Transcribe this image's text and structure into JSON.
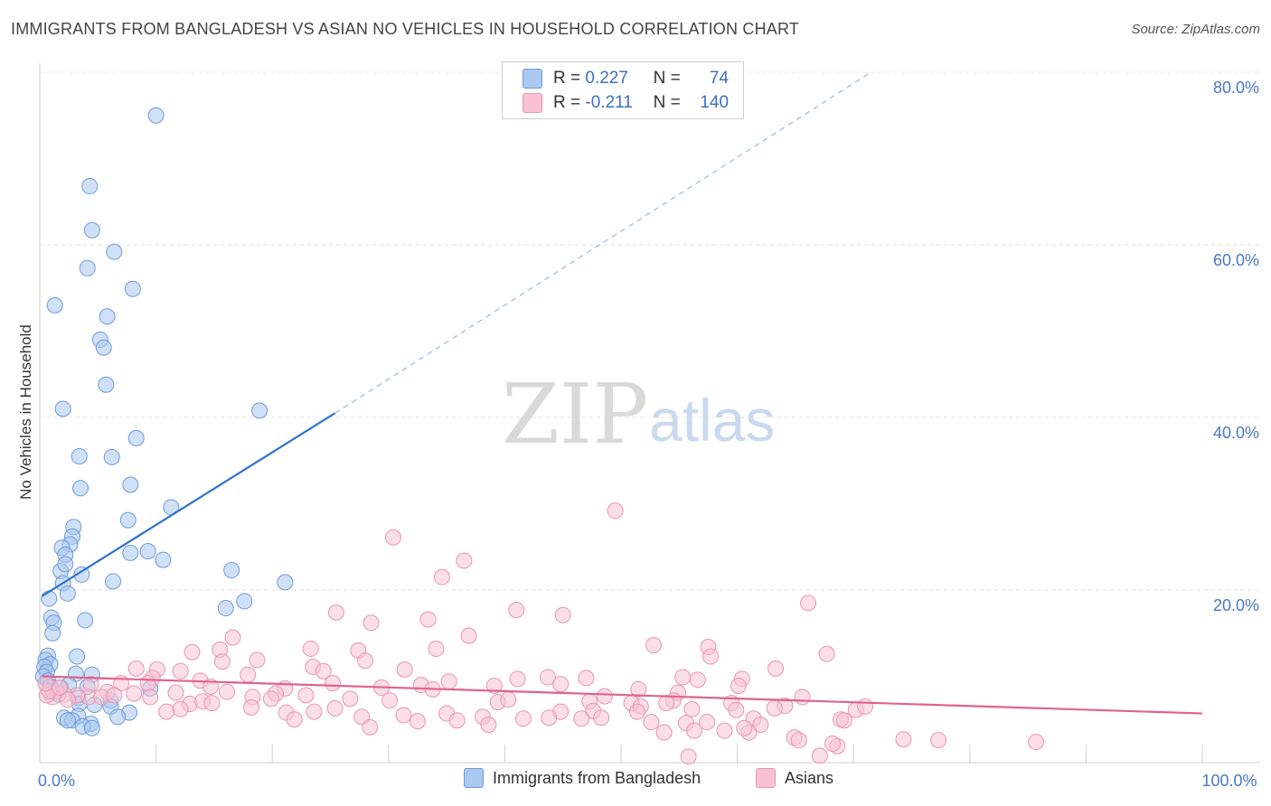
{
  "title": "IMMIGRANTS FROM BANGLADESH VS ASIAN NO VEHICLES IN HOUSEHOLD CORRELATION CHART",
  "source": "Source: ZipAtlas.com",
  "watermark": {
    "zip": "ZIP",
    "atlas": "atlas"
  },
  "legend": {
    "rows": [
      {
        "r_label": "R =",
        "r_value": "0.227",
        "n_label": "N =",
        "n_value": "74",
        "color": "#aac8f0",
        "border": "#6f9ad8"
      },
      {
        "r_label": "R =",
        "r_value": "-0.211",
        "n_label": "N =",
        "n_value": "140",
        "color": "#f8c2d4",
        "border": "#e896b1"
      }
    ]
  },
  "bottom_legend": [
    {
      "label": "Immigrants from Bangladesh",
      "color": "#aac8f0",
      "border": "#6f9ad8"
    },
    {
      "label": "Asians",
      "color": "#f8c2d4",
      "border": "#e896b1"
    }
  ],
  "chart_data": {
    "type": "scatter",
    "ylabel": "No Vehicles in Household",
    "xlabel": "",
    "xlim": [
      0,
      100
    ],
    "ylim": [
      0,
      85
    ],
    "x_ticks": [
      {
        "v": 0,
        "label": "0.0%"
      },
      {
        "v": 100,
        "label": "100.0%"
      }
    ],
    "y_ticks": [
      {
        "v": 20,
        "label": "20.0%"
      },
      {
        "v": 40,
        "label": "40.0%"
      },
      {
        "v": 60,
        "label": "60.0%"
      },
      {
        "v": 80,
        "label": "80.0%"
      }
    ],
    "grid": true,
    "series": [
      {
        "name": "Immigrants from Bangladesh",
        "color": "#aac8f0",
        "stroke": "#6f9ad8",
        "trend": {
          "x0": 0.2,
          "y0": 19.3,
          "x1": 25.4,
          "y1": 40.5,
          "dash_x1": 71.5,
          "dash_y1": 80.0,
          "color": "#2f72cf"
        },
        "points": [
          [
            10.0,
            75.0
          ],
          [
            4.3,
            66.8
          ],
          [
            4.5,
            61.7
          ],
          [
            6.4,
            59.2
          ],
          [
            4.1,
            57.3
          ],
          [
            8.0,
            54.9
          ],
          [
            1.3,
            53.0
          ],
          [
            5.8,
            51.7
          ],
          [
            5.2,
            49.0
          ],
          [
            5.5,
            48.1
          ],
          [
            5.7,
            43.8
          ],
          [
            2.0,
            41.0
          ],
          [
            18.9,
            40.8
          ],
          [
            8.3,
            37.6
          ],
          [
            3.4,
            35.5
          ],
          [
            6.2,
            35.4
          ],
          [
            3.5,
            31.8
          ],
          [
            7.8,
            32.2
          ],
          [
            11.3,
            29.6
          ],
          [
            2.9,
            27.3
          ],
          [
            7.6,
            28.1
          ],
          [
            2.8,
            26.2
          ],
          [
            2.6,
            25.3
          ],
          [
            1.9,
            24.9
          ],
          [
            2.2,
            24.1
          ],
          [
            9.3,
            24.5
          ],
          [
            7.8,
            24.3
          ],
          [
            10.6,
            23.5
          ],
          [
            1.8,
            22.2
          ],
          [
            2.2,
            23.0
          ],
          [
            16.5,
            22.3
          ],
          [
            3.6,
            21.8
          ],
          [
            2.0,
            20.8
          ],
          [
            6.3,
            21.0
          ],
          [
            21.1,
            20.9
          ],
          [
            2.4,
            19.6
          ],
          [
            0.8,
            19.0
          ],
          [
            17.6,
            18.7
          ],
          [
            16.0,
            17.9
          ],
          [
            1.0,
            16.8
          ],
          [
            1.2,
            16.2
          ],
          [
            3.9,
            16.5
          ],
          [
            1.1,
            15.0
          ],
          [
            0.7,
            12.4
          ],
          [
            3.2,
            12.3
          ],
          [
            0.5,
            11.9
          ],
          [
            0.9,
            11.4
          ],
          [
            0.4,
            11.1
          ],
          [
            0.6,
            10.5
          ],
          [
            0.3,
            10.0
          ],
          [
            0.7,
            9.5
          ],
          [
            3.1,
            10.3
          ],
          [
            4.5,
            10.2
          ],
          [
            0.9,
            8.8
          ],
          [
            1.8,
            8.7
          ],
          [
            2.5,
            9.0
          ],
          [
            4.1,
            8.8
          ],
          [
            1.2,
            8.2
          ],
          [
            9.5,
            8.6
          ],
          [
            3.3,
            7.5
          ],
          [
            1.6,
            7.9
          ],
          [
            6.1,
            7.2
          ],
          [
            3.4,
            6.8
          ],
          [
            4.7,
            6.7
          ],
          [
            6.1,
            6.5
          ],
          [
            2.1,
            5.2
          ],
          [
            3.3,
            5.4
          ],
          [
            2.8,
            4.9
          ],
          [
            4.4,
            4.5
          ],
          [
            3.7,
            4.2
          ],
          [
            7.7,
            5.8
          ],
          [
            4.5,
            4.0
          ],
          [
            2.4,
            4.9
          ],
          [
            6.7,
            5.3
          ]
        ]
      },
      {
        "name": "Asians",
        "color": "#f8c2d4",
        "stroke": "#e896b1",
        "trend": {
          "x0": 0.2,
          "y0": 10.0,
          "x1": 100.0,
          "y1": 5.7,
          "color": "#e0628f"
        },
        "points": [
          [
            49.5,
            29.2
          ],
          [
            30.4,
            26.1
          ],
          [
            36.5,
            23.4
          ],
          [
            34.6,
            21.5
          ],
          [
            66.1,
            18.5
          ],
          [
            41.0,
            17.7
          ],
          [
            25.5,
            17.4
          ],
          [
            45.0,
            17.1
          ],
          [
            33.4,
            16.6
          ],
          [
            28.5,
            16.2
          ],
          [
            36.9,
            14.7
          ],
          [
            16.6,
            14.5
          ],
          [
            15.5,
            13.1
          ],
          [
            23.3,
            13.2
          ],
          [
            34.1,
            13.2
          ],
          [
            52.8,
            13.6
          ],
          [
            57.5,
            13.4
          ],
          [
            13.1,
            12.8
          ],
          [
            27.4,
            13.0
          ],
          [
            57.7,
            12.3
          ],
          [
            67.7,
            12.6
          ],
          [
            18.7,
            11.9
          ],
          [
            15.7,
            11.7
          ],
          [
            28.0,
            11.8
          ],
          [
            23.5,
            11.1
          ],
          [
            10.1,
            10.8
          ],
          [
            12.1,
            10.6
          ],
          [
            8.3,
            10.9
          ],
          [
            31.4,
            10.8
          ],
          [
            63.3,
            10.9
          ],
          [
            24.4,
            10.6
          ],
          [
            17.9,
            10.2
          ],
          [
            43.7,
            9.9
          ],
          [
            55.3,
            9.9
          ],
          [
            9.7,
            9.8
          ],
          [
            13.8,
            9.5
          ],
          [
            41.1,
            9.7
          ],
          [
            47.0,
            9.8
          ],
          [
            56.6,
            9.6
          ],
          [
            60.4,
            9.7
          ],
          [
            35.2,
            9.4
          ],
          [
            9.3,
            9.2
          ],
          [
            4.4,
            9.1
          ],
          [
            7.0,
            9.2
          ],
          [
            32.8,
            9.0
          ],
          [
            25.2,
            9.2
          ],
          [
            44.8,
            9.1
          ],
          [
            39.1,
            8.9
          ],
          [
            33.8,
            8.5
          ],
          [
            29.4,
            8.7
          ],
          [
            51.5,
            8.5
          ],
          [
            54.9,
            8.1
          ],
          [
            60.1,
            8.9
          ],
          [
            21.1,
            8.6
          ],
          [
            16.1,
            8.2
          ],
          [
            14.7,
            8.8
          ],
          [
            11.7,
            8.1
          ],
          [
            20.3,
            8.0
          ],
          [
            19.9,
            7.4
          ],
          [
            5.8,
            8.2
          ],
          [
            4.2,
            7.6
          ],
          [
            3.2,
            7.8
          ],
          [
            2.1,
            7.9
          ],
          [
            1.4,
            8.2
          ],
          [
            2.4,
            7.3
          ],
          [
            1.1,
            7.6
          ],
          [
            0.6,
            7.8
          ],
          [
            0.8,
            8.3
          ],
          [
            0.5,
            9.2
          ],
          [
            1.7,
            8.7
          ],
          [
            5.3,
            7.6
          ],
          [
            6.4,
            7.8
          ],
          [
            8.1,
            8.0
          ],
          [
            12.9,
            6.8
          ],
          [
            14.0,
            7.1
          ],
          [
            18.3,
            7.6
          ],
          [
            22.9,
            7.8
          ],
          [
            26.7,
            7.4
          ],
          [
            30.1,
            7.2
          ],
          [
            39.4,
            7.0
          ],
          [
            40.3,
            7.3
          ],
          [
            47.3,
            7.1
          ],
          [
            48.6,
            7.7
          ],
          [
            50.9,
            6.9
          ],
          [
            51.7,
            6.5
          ],
          [
            54.5,
            7.2
          ],
          [
            59.5,
            6.9
          ],
          [
            64.1,
            6.6
          ],
          [
            65.6,
            7.6
          ],
          [
            70.2,
            6.1
          ],
          [
            71.0,
            6.5
          ],
          [
            63.2,
            6.3
          ],
          [
            59.9,
            6.1
          ],
          [
            56.1,
            6.2
          ],
          [
            53.9,
            6.9
          ],
          [
            51.4,
            5.9
          ],
          [
            47.6,
            6.0
          ],
          [
            44.8,
            5.9
          ],
          [
            43.8,
            5.2
          ],
          [
            35.0,
            5.7
          ],
          [
            31.3,
            5.5
          ],
          [
            27.7,
            5.3
          ],
          [
            23.6,
            5.9
          ],
          [
            21.2,
            5.8
          ],
          [
            14.8,
            6.9
          ],
          [
            12.1,
            6.2
          ],
          [
            10.9,
            5.9
          ],
          [
            9.5,
            7.6
          ],
          [
            25.4,
            6.3
          ],
          [
            18.2,
            6.4
          ],
          [
            21.9,
            5.0
          ],
          [
            28.4,
            4.1
          ],
          [
            32.5,
            4.8
          ],
          [
            35.9,
            4.9
          ],
          [
            38.1,
            5.3
          ],
          [
            41.6,
            5.1
          ],
          [
            38.6,
            4.4
          ],
          [
            46.6,
            5.1
          ],
          [
            48.3,
            5.2
          ],
          [
            55.6,
            4.6
          ],
          [
            57.4,
            4.7
          ],
          [
            61.4,
            5.1
          ],
          [
            62.0,
            4.4
          ],
          [
            58.9,
            3.7
          ],
          [
            61.0,
            3.5
          ],
          [
            60.6,
            4.0
          ],
          [
            52.6,
            4.7
          ],
          [
            53.7,
            3.5
          ],
          [
            56.3,
            3.7
          ],
          [
            64.9,
            2.9
          ],
          [
            65.3,
            2.6
          ],
          [
            68.9,
            5.0
          ],
          [
            69.2,
            4.9
          ],
          [
            74.3,
            2.7
          ],
          [
            77.3,
            2.6
          ],
          [
            85.7,
            2.4
          ],
          [
            68.6,
            1.9
          ],
          [
            55.8,
            0.7
          ],
          [
            67.1,
            0.8
          ],
          [
            68.2,
            2.2
          ]
        ]
      }
    ]
  }
}
